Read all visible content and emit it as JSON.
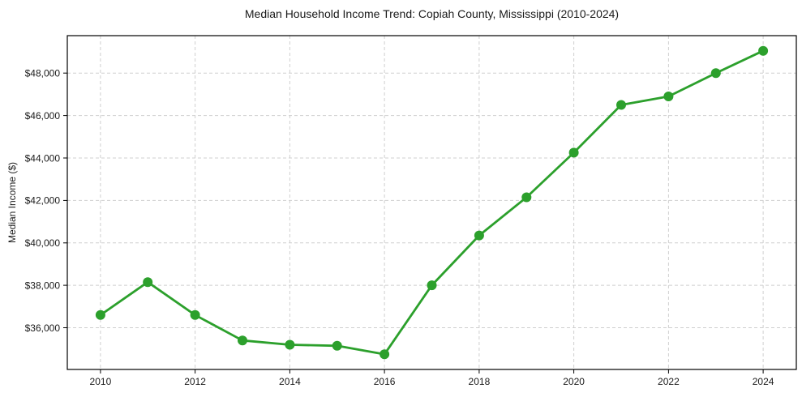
{
  "figure": {
    "title": "Median Household Income Trend: Copiah County, Mississippi (2010-2024)",
    "y_axis_label": "Median Income ($)"
  },
  "chart_data": {
    "type": "line",
    "title": "Median Household Income Trend: Copiah County, Mississippi (2010-2024)",
    "xlabel": "",
    "ylabel": "Median Income ($)",
    "x": [
      2010,
      2011,
      2012,
      2013,
      2014,
      2015,
      2016,
      2017,
      2018,
      2019,
      2020,
      2021,
      2022,
      2023,
      2024
    ],
    "series": [
      {
        "name": "Median Household Income",
        "values": [
          36600,
          38150,
          36600,
          35400,
          35200,
          35150,
          34750,
          38000,
          40350,
          42150,
          44250,
          46500,
          46900,
          48000,
          49050
        ]
      }
    ],
    "xticks": [
      2010,
      2012,
      2014,
      2016,
      2018,
      2020,
      2022,
      2024
    ],
    "xtick_labels": [
      "2010",
      "2012",
      "2014",
      "2016",
      "2018",
      "2020",
      "2022",
      "2024"
    ],
    "yticks": [
      36000,
      38000,
      40000,
      42000,
      44000,
      46000,
      48000
    ],
    "ytick_labels": [
      "$36,000",
      "$38,000",
      "$40,000",
      "$42,000",
      "$44,000",
      "$46,000",
      "$48,000"
    ],
    "xlim": [
      2009.3,
      2024.7
    ],
    "ylim": [
      34035,
      49765
    ],
    "grid": true,
    "grid_linestyle": "dashed",
    "legend": false,
    "colors": {
      "line": "#2ca02c",
      "marker": "#2ca02c",
      "grid": "#cfcfcf",
      "spine": "#000000",
      "background": "#ffffff"
    }
  }
}
